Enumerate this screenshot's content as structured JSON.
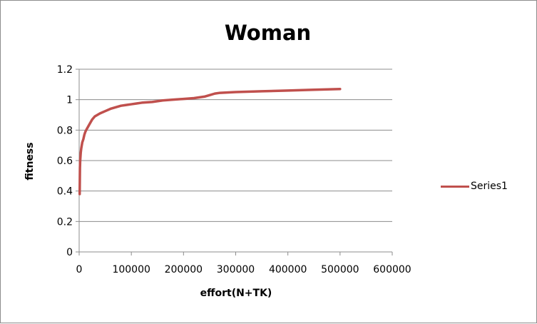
{
  "chart_data": {
    "type": "line",
    "title": "Woman",
    "xlabel": "effort(N+TK)",
    "ylabel": "fitness",
    "xlim": [
      0,
      600000
    ],
    "ylim": [
      0,
      1.2
    ],
    "x_ticks": [
      "0",
      "100000",
      "200000",
      "300000",
      "400000",
      "500000",
      "600000"
    ],
    "y_ticks": [
      "0",
      "0.2",
      "0.4",
      "0.6",
      "0.8",
      "1",
      "1.2"
    ],
    "grid": "horizontal",
    "legend_position": "right",
    "series": [
      {
        "name": "Series1",
        "color": "#c0504d",
        "points": [
          [
            1000,
            0.38
          ],
          [
            1500,
            0.55
          ],
          [
            2000,
            0.6
          ],
          [
            3000,
            0.65
          ],
          [
            4000,
            0.68
          ],
          [
            6000,
            0.72
          ],
          [
            8000,
            0.74
          ],
          [
            10000,
            0.77
          ],
          [
            12000,
            0.79
          ],
          [
            15000,
            0.81
          ],
          [
            20000,
            0.84
          ],
          [
            25000,
            0.87
          ],
          [
            30000,
            0.89
          ],
          [
            35000,
            0.9
          ],
          [
            40000,
            0.91
          ],
          [
            50000,
            0.925
          ],
          [
            60000,
            0.94
          ],
          [
            70000,
            0.95
          ],
          [
            80000,
            0.96
          ],
          [
            90000,
            0.965
          ],
          [
            100000,
            0.97
          ],
          [
            110000,
            0.975
          ],
          [
            120000,
            0.98
          ],
          [
            140000,
            0.985
          ],
          [
            160000,
            0.995
          ],
          [
            180000,
            1.0
          ],
          [
            200000,
            1.005
          ],
          [
            220000,
            1.01
          ],
          [
            240000,
            1.02
          ],
          [
            250000,
            1.03
          ],
          [
            260000,
            1.04
          ],
          [
            270000,
            1.045
          ],
          [
            300000,
            1.05
          ],
          [
            350000,
            1.055
          ],
          [
            400000,
            1.06
          ],
          [
            450000,
            1.065
          ],
          [
            500000,
            1.07
          ]
        ]
      }
    ]
  }
}
